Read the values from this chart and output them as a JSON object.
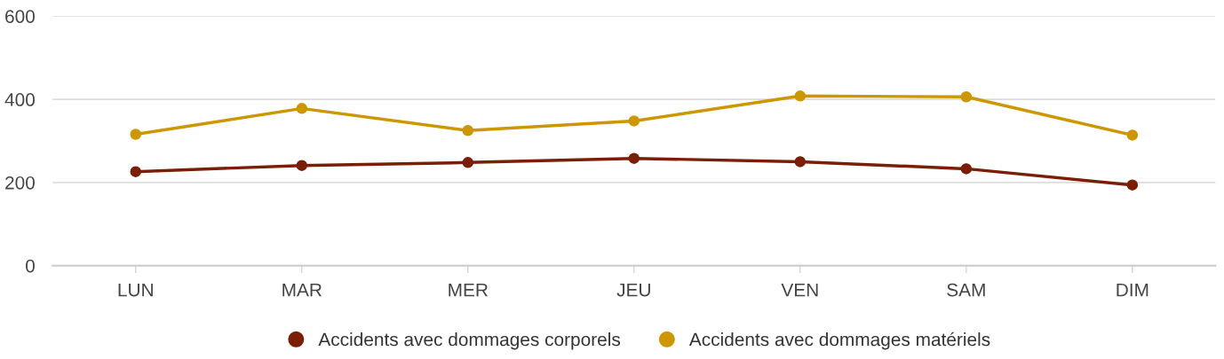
{
  "chart_data": {
    "type": "line",
    "categories": [
      "LUN",
      "MAR",
      "MER",
      "JEU",
      "VEN",
      "SAM",
      "DIM"
    ],
    "series": [
      {
        "name": "Accidents avec dommages corporels",
        "color": "#7a1e05",
        "values": [
          226,
          241,
          248,
          258,
          250,
          233,
          194
        ]
      },
      {
        "name": "Accidents avec dommages matériels",
        "color": "#cc9700",
        "values": [
          316,
          378,
          325,
          348,
          408,
          406,
          314
        ]
      }
    ],
    "ylim": [
      0,
      600
    ],
    "yticks": [
      0,
      200,
      400,
      600
    ],
    "grid": "y",
    "legend": "bottom",
    "marker": "circle",
    "line_style": "solid"
  }
}
